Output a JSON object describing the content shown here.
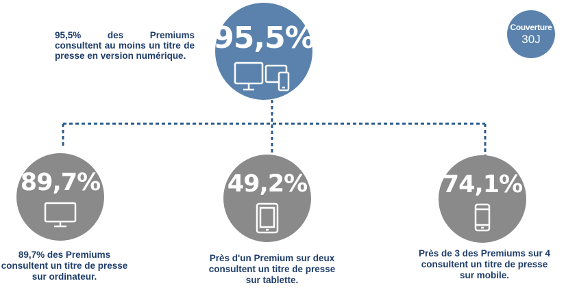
{
  "main": {
    "value": "95,5%",
    "description": "95,5% des Premiums consultent au moins un titre de presse en version numérique.",
    "icon": "devices-icon"
  },
  "badge": {
    "line1": "Couverture",
    "line2": "30J"
  },
  "items": [
    {
      "value": "89,7%",
      "caption": "89,7% des Premiums consultent un titre de presse sur ordinateur.",
      "icon": "monitor-icon"
    },
    {
      "value": "49,2%",
      "caption": "Près d'un Premium sur deux consultent un titre de presse sur tablette.",
      "icon": "tablet-icon"
    },
    {
      "value": "74,1%",
      "caption": "Près de 3 des Premiums sur 4 consultent un titre de presse sur mobile.",
      "icon": "smartphone-icon"
    }
  ],
  "colors": {
    "main_circle": "#5a82ad",
    "item_circle": "#8a8a8a",
    "text": "#1f3d6b",
    "connector": "#2a5a8e"
  }
}
